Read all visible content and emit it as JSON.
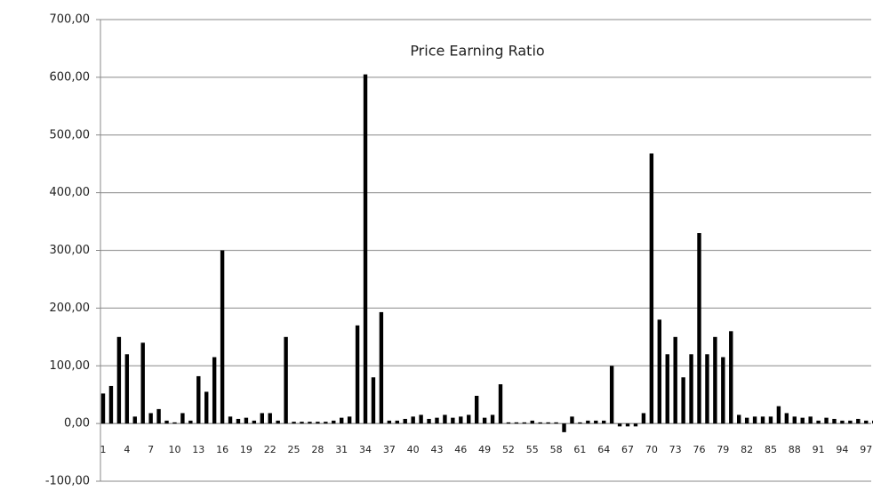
{
  "chart_data": {
    "type": "bar",
    "title": "Price Earning Ratio",
    "categories": [
      "1",
      null,
      null,
      "4",
      null,
      null,
      "7",
      null,
      null,
      "10",
      null,
      null,
      "13",
      null,
      null,
      "16",
      null,
      null,
      "19",
      null,
      null,
      "22",
      null,
      null,
      "25",
      null,
      null,
      "28",
      null,
      null,
      "31",
      null,
      null,
      "34",
      null,
      null,
      "37",
      null,
      null,
      "40",
      null,
      null,
      "43",
      null,
      null,
      "46",
      null,
      null,
      "49",
      null,
      null,
      "52",
      null,
      null,
      "55",
      null,
      null,
      "58",
      null,
      null,
      "61",
      null,
      null,
      "64",
      null,
      null,
      "67",
      null,
      null,
      "70",
      null,
      null,
      "73",
      null,
      null,
      "76",
      null,
      null,
      "79",
      null,
      null,
      "82",
      null,
      null,
      "85",
      null,
      null,
      "88",
      null,
      null,
      "91",
      null,
      null,
      "94",
      null,
      null,
      "97",
      null
    ],
    "values": [
      52,
      65,
      150,
      120,
      12,
      140,
      18,
      25,
      5,
      2,
      18,
      5,
      82,
      55,
      115,
      300,
      12,
      8,
      10,
      5,
      18,
      18,
      5,
      150,
      3,
      3,
      3,
      3,
      3,
      5,
      10,
      12,
      170,
      605,
      80,
      193,
      5,
      5,
      8,
      12,
      15,
      8,
      10,
      15,
      10,
      12,
      15,
      48,
      10,
      15,
      68,
      2,
      2,
      2,
      5,
      2,
      2,
      2,
      -15,
      12,
      2,
      5,
      5,
      5,
      100,
      -5,
      -5,
      -5,
      18,
      468,
      180,
      120,
      150,
      80,
      120,
      330,
      120,
      150,
      115,
      160,
      15,
      10,
      12,
      12,
      12,
      30,
      18,
      12,
      10,
      12,
      5,
      10,
      8,
      5,
      5,
      8,
      5,
      5
    ],
    "color": "#000000",
    "ylim": [
      -100,
      700
    ],
    "yticks": [
      {
        "value": -100,
        "label": "-100,00"
      },
      {
        "value": 0,
        "label": "0,00"
      },
      {
        "value": 100,
        "label": "100,00"
      },
      {
        "value": 200,
        "label": "200,00"
      },
      {
        "value": 300,
        "label": "300,00"
      },
      {
        "value": 400,
        "label": "400,00"
      },
      {
        "value": 500,
        "label": "500,00"
      },
      {
        "value": 600,
        "label": "600,00"
      },
      {
        "value": 700,
        "label": "700,00"
      }
    ],
    "grid": true
  }
}
